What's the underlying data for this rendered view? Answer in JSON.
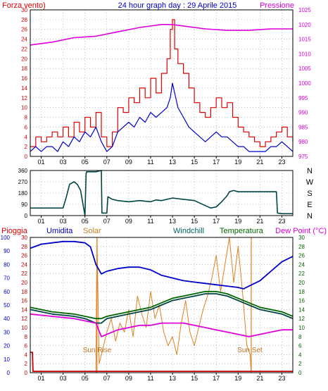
{
  "colors": {
    "red": "#e00000",
    "blue": "#0000cc",
    "magenta": "#dd00dd",
    "dark_teal": "#004444",
    "green": "#006600",
    "orange": "#e08020",
    "dark_red": "#cc0000",
    "grid": "#999999"
  },
  "chart_data": [
    {
      "type": "line",
      "title": "24 hour graph day : 29 Aprile 2015",
      "left_label": "Forza vento)",
      "right_label": "Pressione",
      "x_ticks": [
        "01",
        "03",
        "05",
        "07",
        "09",
        "11",
        "13",
        "15",
        "17",
        "19",
        "21",
        "23"
      ],
      "x_tick_hours": [
        1,
        3,
        5,
        7,
        9,
        11,
        13,
        15,
        17,
        19,
        21,
        23
      ],
      "xlim": [
        0,
        24
      ],
      "y_left_ticks": [
        "0",
        "2",
        "4",
        "6",
        "8",
        "10",
        "12",
        "14",
        "16",
        "18",
        "20",
        "22",
        "24",
        "26",
        "28",
        "30"
      ],
      "ylim_left": [
        0,
        30
      ],
      "y_right_ticks": [
        "975",
        "980",
        "985",
        "990",
        "995",
        "1000",
        "1005",
        "1010",
        "1015",
        "1020",
        "1025"
      ],
      "ylim_right": [
        975,
        1025
      ],
      "grid": true,
      "series": [
        {
          "key": "gust",
          "axis": "left",
          "color": "red",
          "x": [
            0,
            0.5,
            1,
            1.5,
            2,
            2.5,
            3,
            3.5,
            4,
            4.5,
            5,
            5.5,
            6,
            6.5,
            7,
            7.5,
            8,
            8.5,
            9,
            9.5,
            10,
            10.5,
            11,
            11.5,
            12,
            12.5,
            12.8,
            13,
            13.2,
            13.5,
            14,
            14.5,
            15,
            15.5,
            16,
            16.5,
            17,
            17.5,
            18,
            18.5,
            19,
            19.5,
            20,
            20.5,
            21,
            21.5,
            22,
            22.5,
            23,
            23.5,
            24
          ],
          "y": [
            2,
            4,
            3,
            4,
            5,
            4,
            6,
            4,
            7,
            5,
            8,
            6,
            9,
            4,
            2,
            5,
            10,
            9,
            12,
            11,
            14,
            12,
            16,
            13,
            17,
            20,
            26,
            28,
            22,
            19,
            17,
            14,
            11,
            9,
            8,
            10,
            12,
            10,
            11,
            8,
            6,
            5,
            4,
            3,
            2,
            3,
            4,
            5,
            6,
            4,
            3
          ]
        },
        {
          "key": "wind",
          "axis": "left",
          "color": "blue",
          "x": [
            0,
            0.5,
            1,
            1.5,
            2,
            2.5,
            3,
            3.5,
            4,
            4.5,
            5,
            5.5,
            6,
            6.5,
            7,
            7.5,
            8,
            8.5,
            9,
            9.5,
            10,
            10.5,
            11,
            11.5,
            12,
            12.5,
            12.8,
            13,
            13.2,
            13.5,
            14,
            14.5,
            15,
            15.5,
            16,
            16.5,
            17,
            17.5,
            18,
            18.5,
            19,
            19.5,
            20,
            20.5,
            21,
            21.5,
            22,
            22.5,
            23,
            23.5,
            24
          ],
          "y": [
            1,
            2,
            1,
            2,
            2,
            1,
            3,
            2,
            4,
            3,
            5,
            4,
            6,
            3,
            1,
            2,
            5,
            6,
            7,
            6,
            8,
            7,
            9,
            8,
            9,
            10,
            12,
            15,
            13,
            10,
            8,
            6,
            5,
            4,
            3,
            4,
            5,
            4,
            4,
            3,
            2,
            2,
            1,
            1,
            1,
            1,
            2,
            2,
            3,
            2,
            1
          ]
        },
        {
          "key": "pressure",
          "axis": "right",
          "color": "magenta",
          "x": [
            0,
            2,
            4,
            6,
            8,
            10,
            12,
            13,
            14,
            16,
            18,
            20,
            22,
            24
          ],
          "y": [
            1013,
            1014,
            1015.5,
            1016,
            1017.5,
            1019,
            1020,
            1020,
            1019.5,
            1018.5,
            1018,
            1018,
            1018.5,
            1018.5
          ]
        }
      ]
    },
    {
      "type": "line",
      "x_ticks": [
        "01",
        "03",
        "05",
        "07",
        "09",
        "11",
        "13",
        "15",
        "17",
        "19",
        "21",
        "23"
      ],
      "xlim": [
        0,
        24
      ],
      "y_ticks": [
        "0",
        "90",
        "180",
        "270",
        "360"
      ],
      "ylim": [
        0,
        360
      ],
      "right_labels": [
        "N",
        "W",
        "S",
        "E",
        "N"
      ],
      "grid": true,
      "series": [
        {
          "key": "direction",
          "color": "dark_teal",
          "x": [
            0,
            3,
            3.3,
            3.6,
            4,
            4.3,
            4.6,
            5,
            5.1,
            5.15,
            6,
            6.5,
            6.55,
            7,
            7.1,
            7.5,
            8,
            9,
            10,
            11,
            11.5,
            12,
            13,
            14,
            15,
            16,
            16.5,
            17,
            17.5,
            18,
            18.2,
            18.6,
            19,
            20,
            21,
            22,
            22.5,
            22.6,
            23,
            24
          ],
          "y": [
            60,
            60,
            150,
            250,
            270,
            250,
            200,
            0,
            330,
            350,
            350,
            360,
            20,
            20,
            150,
            130,
            120,
            110,
            120,
            110,
            125,
            120,
            140,
            130,
            120,
            80,
            60,
            70,
            110,
            160,
            190,
            200,
            190,
            190,
            190,
            190,
            190,
            20,
            15,
            15
          ]
        }
      ]
    },
    {
      "type": "line",
      "labels": {
        "rain": "Pioggia",
        "humidity": "Umidita",
        "solar": "Solar",
        "windchill": "Windchill",
        "temperature": "Temperatura",
        "dewpoint": "Dew Point (°C)"
      },
      "annotations": {
        "sunrise": "Sun Rise",
        "sunset": "Sun Set"
      },
      "sunrise_hour": 6.1,
      "sunset_hour": 20.2,
      "x_ticks": [
        "01",
        "03",
        "05",
        "07",
        "09",
        "11",
        "13",
        "15",
        "17",
        "19",
        "21",
        "23"
      ],
      "xlim": [
        0,
        24
      ],
      "y_humidity_ticks": [
        "0",
        "10",
        "20",
        "30",
        "40",
        "50",
        "60",
        "70",
        "80",
        "90",
        "100"
      ],
      "ylim_humidity": [
        0,
        100
      ],
      "y_rain_ticks": [
        "0",
        "2",
        "4",
        "6",
        "8",
        "10",
        "12",
        "14",
        "16",
        "18",
        "20",
        "22",
        "24",
        "26",
        "28",
        "30"
      ],
      "ylim_rain": [
        0,
        30
      ],
      "y_temp_ticks": [
        "0",
        "2",
        "4",
        "6",
        "8",
        "10",
        "12",
        "14",
        "16",
        "18",
        "20",
        "22",
        "24",
        "26",
        "28",
        "30"
      ],
      "ylim_temp": [
        0,
        30
      ],
      "grid": true,
      "series": [
        {
          "key": "humidity",
          "axis": "humidity",
          "color": "blue",
          "x": [
            0,
            1,
            2,
            3,
            4,
            5,
            5.5,
            6,
            6.5,
            7,
            8,
            9,
            10,
            11,
            12,
            13,
            14,
            15,
            16,
            17,
            18,
            19,
            19.5,
            20,
            21,
            22,
            23,
            24
          ],
          "y": [
            92,
            95,
            96,
            97,
            97,
            96,
            93,
            80,
            73,
            75,
            77,
            78,
            78,
            76,
            72,
            70,
            68,
            67,
            66,
            65,
            64,
            63,
            62,
            64,
            68,
            75,
            82,
            86
          ]
        },
        {
          "key": "solar",
          "axis": "rain",
          "color": "orange",
          "x": [
            0,
            6,
            6.1,
            6.3,
            6.6,
            7,
            7.4,
            7.8,
            8.2,
            8.6,
            9,
            9.4,
            9.8,
            10.2,
            10.6,
            11,
            11.4,
            11.8,
            12.2,
            12.6,
            13,
            13.4,
            13.8,
            14.2,
            14.6,
            15,
            15.4,
            15.8,
            16.2,
            16.6,
            17,
            17.4,
            17.8,
            18.2,
            18.6,
            19,
            19.4,
            19.8,
            20.1,
            20.2,
            24
          ],
          "y": [
            0,
            0,
            30,
            2,
            5,
            9,
            12,
            7,
            11,
            9,
            14,
            8,
            17,
            13,
            10,
            18,
            12,
            15,
            9,
            6,
            8,
            4,
            11,
            16,
            9,
            6,
            10,
            14,
            17,
            21,
            26,
            18,
            24,
            30,
            20,
            28,
            18,
            6,
            4,
            0,
            0
          ]
        },
        {
          "key": "windchill",
          "axis": "temp",
          "color": "dark_teal",
          "x": [
            0,
            2,
            4,
            5,
            6,
            6.5,
            7,
            8,
            9,
            10,
            11,
            12,
            13,
            14,
            15,
            16,
            17,
            18,
            19,
            20,
            21,
            22,
            23,
            24
          ],
          "y": [
            14,
            13,
            12.5,
            12,
            11,
            11,
            12,
            12.5,
            13,
            13.5,
            14,
            15,
            16,
            16.5,
            17,
            17.5,
            17.5,
            17,
            16,
            15,
            14,
            13.5,
            13,
            12
          ]
        },
        {
          "key": "temperature",
          "axis": "temp",
          "color": "green",
          "x": [
            0,
            2,
            4,
            5,
            6,
            6.5,
            7,
            8,
            9,
            10,
            11,
            12,
            13,
            14,
            15,
            16,
            17,
            18,
            19,
            20,
            21,
            22,
            23,
            24
          ],
          "y": [
            14.5,
            13.5,
            13,
            12.5,
            12,
            12,
            12.5,
            13,
            13.5,
            14,
            14.5,
            15.5,
            16.5,
            17,
            17.5,
            18,
            18,
            17.5,
            16.5,
            15.5,
            14.5,
            14,
            13.5,
            12.5
          ]
        },
        {
          "key": "dewpoint",
          "axis": "temp",
          "color": "magenta",
          "x": [
            0,
            2,
            4,
            5,
            6,
            6.5,
            7,
            8,
            9,
            10,
            11,
            12,
            13,
            14,
            15,
            16,
            17,
            18,
            19,
            20,
            21,
            22,
            23,
            24
          ],
          "y": [
            13,
            12.5,
            12,
            11.5,
            11,
            8,
            8.5,
            9.5,
            10,
            10.5,
            10.5,
            11,
            11,
            11,
            10.5,
            10,
            9.5,
            9,
            8.5,
            8,
            8.5,
            9,
            9.5,
            9.5
          ]
        },
        {
          "key": "rain",
          "axis": "rain",
          "color": "dark_red",
          "x": [
            0,
            0.2,
            0.25,
            24
          ],
          "y": [
            4.5,
            4.5,
            0.3,
            0.3
          ]
        }
      ]
    }
  ]
}
